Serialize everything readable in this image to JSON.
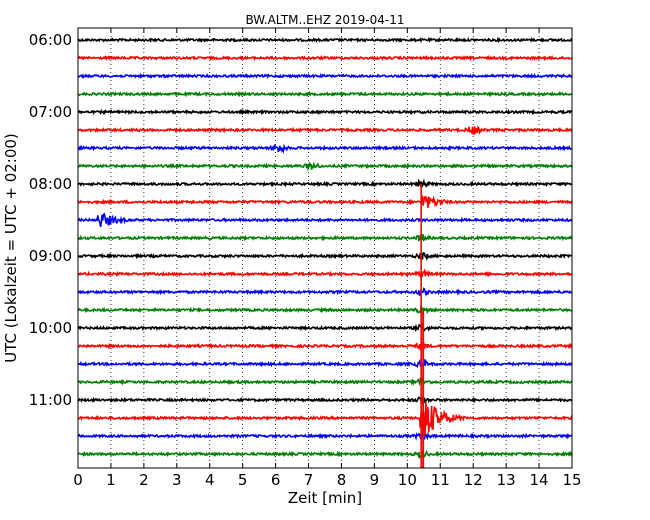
{
  "chart_data": {
    "type": "line",
    "title": "BW.ALTM..EHZ 2019-04-11",
    "xlabel": "Zeit  [min]",
    "ylabel": "UTC (Lokalzeit = UTC + 02:00)",
    "xlim": [
      0,
      15
    ],
    "x_ticks": [
      "0",
      "1",
      "2",
      "3",
      "4",
      "5",
      "6",
      "7",
      "8",
      "9",
      "10",
      "11",
      "12",
      "13",
      "14",
      "15"
    ],
    "y_tick_labels": [
      "06:00",
      "07:00",
      "08:00",
      "09:00",
      "10:00",
      "11:00"
    ],
    "grid": "vertical dotted",
    "trace_colors": [
      "#000000",
      "#ff0000",
      "#0000ff",
      "#008000"
    ],
    "traces": [
      {
        "start": "06:00",
        "color": "#000000"
      },
      {
        "start": "06:15",
        "color": "#ff0000"
      },
      {
        "start": "06:30",
        "color": "#0000ff"
      },
      {
        "start": "06:45",
        "color": "#008000"
      },
      {
        "start": "07:00",
        "color": "#000000"
      },
      {
        "start": "07:15",
        "color": "#ff0000",
        "events": [
          {
            "t": 12.0,
            "amp": 0.4
          }
        ]
      },
      {
        "start": "07:30",
        "color": "#0000ff",
        "events": [
          {
            "t": 6.1,
            "amp": 0.45
          }
        ]
      },
      {
        "start": "07:45",
        "color": "#008000",
        "events": [
          {
            "t": 7.1,
            "amp": 0.35
          }
        ]
      },
      {
        "start": "08:00",
        "color": "#000000",
        "events": [
          {
            "t": 10.45,
            "amp": 0.3
          }
        ]
      },
      {
        "start": "08:15",
        "color": "#ff0000",
        "events": [
          {
            "t": 10.45,
            "amp": 1.0
          }
        ]
      },
      {
        "start": "08:30",
        "color": "#0000ff",
        "events": [
          {
            "t": 0.65,
            "amp": 1.0
          }
        ]
      },
      {
        "start": "08:45",
        "color": "#008000",
        "events": [
          {
            "t": 10.45,
            "amp": 0.3
          }
        ]
      },
      {
        "start": "09:00",
        "color": "#000000",
        "events": [
          {
            "t": 10.45,
            "amp": 0.3
          }
        ]
      },
      {
        "start": "09:15",
        "color": "#ff0000",
        "events": [
          {
            "t": 10.45,
            "amp": 0.3
          }
        ]
      },
      {
        "start": "09:30",
        "color": "#0000ff",
        "events": [
          {
            "t": 10.45,
            "amp": 0.3
          }
        ]
      },
      {
        "start": "09:45",
        "color": "#008000",
        "events": [
          {
            "t": 10.45,
            "amp": 0.3
          }
        ]
      },
      {
        "start": "10:00",
        "color": "#000000",
        "events": [
          {
            "t": 10.45,
            "amp": 0.3
          }
        ]
      },
      {
        "start": "10:15",
        "color": "#ff0000",
        "events": [
          {
            "t": 10.45,
            "amp": 0.3
          }
        ]
      },
      {
        "start": "10:30",
        "color": "#0000ff",
        "events": [
          {
            "t": 10.45,
            "amp": 0.3
          }
        ]
      },
      {
        "start": "10:45",
        "color": "#008000",
        "events": [
          {
            "t": 10.45,
            "amp": 0.3
          }
        ]
      },
      {
        "start": "11:00",
        "color": "#000000",
        "events": [
          {
            "t": 10.45,
            "amp": 0.3
          }
        ]
      },
      {
        "start": "11:15",
        "color": "#ff0000",
        "events": [
          {
            "t": 10.45,
            "amp": 3.0
          }
        ]
      },
      {
        "start": "11:30",
        "color": "#0000ff",
        "events": [
          {
            "t": 10.45,
            "amp": 0.3
          }
        ]
      },
      {
        "start": "11:45",
        "color": "#008000",
        "events": [
          {
            "t": 10.45,
            "amp": 0.3
          }
        ]
      }
    ]
  }
}
